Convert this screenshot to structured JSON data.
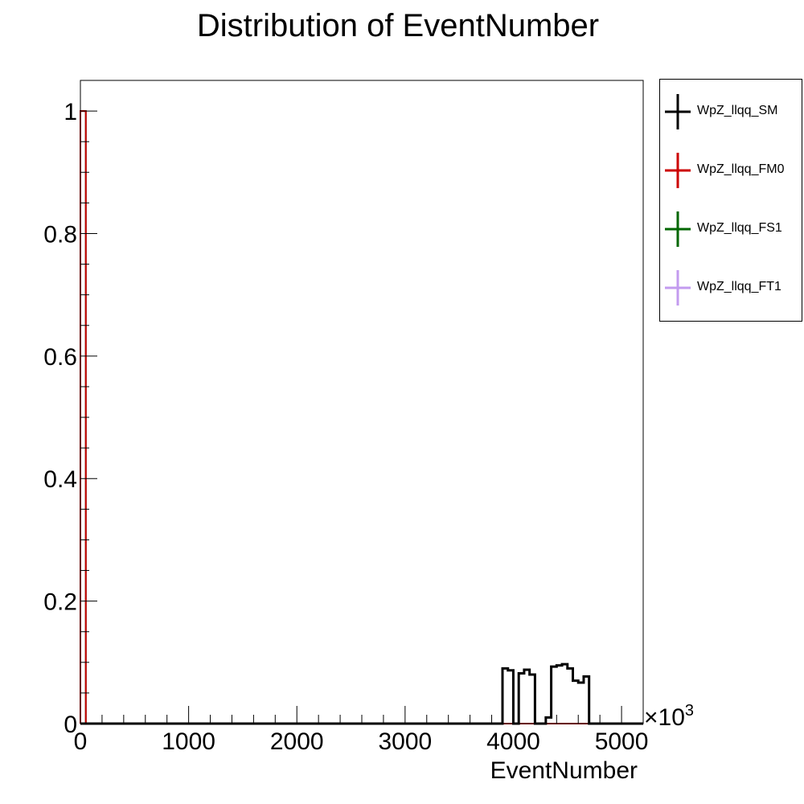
{
  "chart_data": {
    "type": "line",
    "title": "Distribution of EventNumber",
    "xlabel": "EventNumber",
    "ylabel": "",
    "x_multiplier": "×10",
    "x_multiplier_exp": "3",
    "xlim": [
      0,
      5200
    ],
    "ylim": [
      0,
      1.05
    ],
    "x_ticks": [
      "0",
      "1000",
      "2000",
      "3000",
      "4000",
      "5000"
    ],
    "y_ticks": [
      "0",
      "0.2",
      "0.4",
      "0.6",
      "0.8",
      "1"
    ],
    "legend_position": "outside-right",
    "grid": false,
    "series": [
      {
        "name": "WpZ_llqq_SM",
        "color": "#000000",
        "bins": [
          {
            "x0": 0,
            "x1": 50,
            "y": 0
          },
          {
            "x0": 3850,
            "x1": 3900,
            "y": 0
          },
          {
            "x0": 3900,
            "x1": 3950,
            "y": 0.09
          },
          {
            "x0": 3950,
            "x1": 4000,
            "y": 0.087
          },
          {
            "x0": 4000,
            "x1": 4050,
            "y": 0
          },
          {
            "x0": 4050,
            "x1": 4100,
            "y": 0.082
          },
          {
            "x0": 4100,
            "x1": 4150,
            "y": 0.088
          },
          {
            "x0": 4150,
            "x1": 4200,
            "y": 0.08
          },
          {
            "x0": 4200,
            "x1": 4300,
            "y": 0
          },
          {
            "x0": 4300,
            "x1": 4350,
            "y": 0.01
          },
          {
            "x0": 4350,
            "x1": 4400,
            "y": 0.093
          },
          {
            "x0": 4400,
            "x1": 4450,
            "y": 0.095
          },
          {
            "x0": 4450,
            "x1": 4500,
            "y": 0.097
          },
          {
            "x0": 4500,
            "x1": 4550,
            "y": 0.09
          },
          {
            "x0": 4550,
            "x1": 4600,
            "y": 0.07
          },
          {
            "x0": 4600,
            "x1": 4650,
            "y": 0.067
          },
          {
            "x0": 4650,
            "x1": 4700,
            "y": 0.077
          },
          {
            "x0": 4700,
            "x1": 5200,
            "y": 0
          }
        ]
      },
      {
        "name": "WpZ_llqq_FM0",
        "color": "#cc0000",
        "bins": [
          {
            "x0": 0,
            "x1": 50,
            "y": 1
          },
          {
            "x0": 50,
            "x1": 5200,
            "y": 0
          }
        ]
      },
      {
        "name": "WpZ_llqq_FS1",
        "color": "#006600",
        "bins": [
          {
            "x0": 0,
            "x1": 50,
            "y": 1
          },
          {
            "x0": 50,
            "x1": 5200,
            "y": 0
          }
        ]
      },
      {
        "name": "WpZ_llqq_FT1",
        "color": "#c39bef",
        "bins": [
          {
            "x0": 0,
            "x1": 50,
            "y": 1
          },
          {
            "x0": 50,
            "x1": 5200,
            "y": 0
          }
        ]
      }
    ]
  }
}
